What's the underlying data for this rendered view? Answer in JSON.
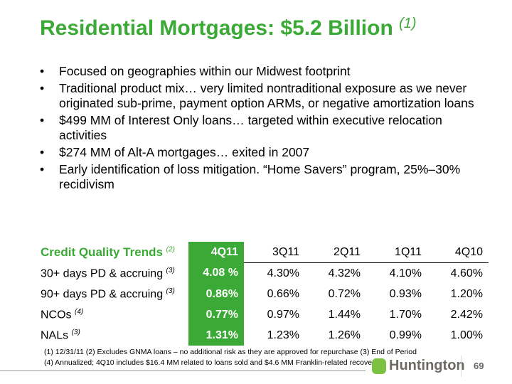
{
  "title": {
    "text": "Residential Mortgages: $5.2 Billion",
    "note": "(1)"
  },
  "bullets": [
    "Focused on geographies within our Midwest footprint",
    "Traditional product mix… very limited nontraditional exposure as we never originated sub-prime, payment option ARMs, or negative amortization loans",
    "$499 MM of Interest Only loans… targeted within executive relocation activities",
    "$274 MM of Alt-A mortgages… exited in 2007",
    "Early identification of loss mitigation. “Home Savers” program, 25%–30% recidivism"
  ],
  "table": {
    "header": {
      "label": "Credit Quality Trends",
      "note": "(2)",
      "columns": [
        "4Q11",
        "3Q11",
        "2Q11",
        "1Q11",
        "4Q10"
      ]
    },
    "rows": [
      {
        "label": "30+ days PD & accruing",
        "note": "(3)",
        "values": [
          "4.08 %",
          "4.30%",
          "4.32%",
          "4.10%",
          "4.60%"
        ]
      },
      {
        "label": "90+ days PD & accruing",
        "note": "(3)",
        "values": [
          "0.86%",
          "0.66%",
          "0.72%",
          "0.93%",
          "1.20%"
        ]
      },
      {
        "label": "NCOs",
        "note": "(4)",
        "values": [
          "0.77%",
          "0.97%",
          "1.44%",
          "1.70%",
          "2.42%"
        ]
      },
      {
        "label": "NALs",
        "note": "(3)",
        "values": [
          "1.31%",
          "1.23%",
          "1.26%",
          "0.99%",
          "1.00%"
        ]
      }
    ]
  },
  "footnotes": [
    "(1)  12/31/11     (2) Excludes GNMA loans – no additional risk as they are approved for repurchase       (3) End of Period",
    "(4)   Annualized; 4Q10 includes $16.4 MM related to loans sold and $4.6 MM Franklin-related recovery"
  ],
  "logo": "Huntington",
  "page_number": "69",
  "colors": {
    "accent": "#3aa935"
  }
}
